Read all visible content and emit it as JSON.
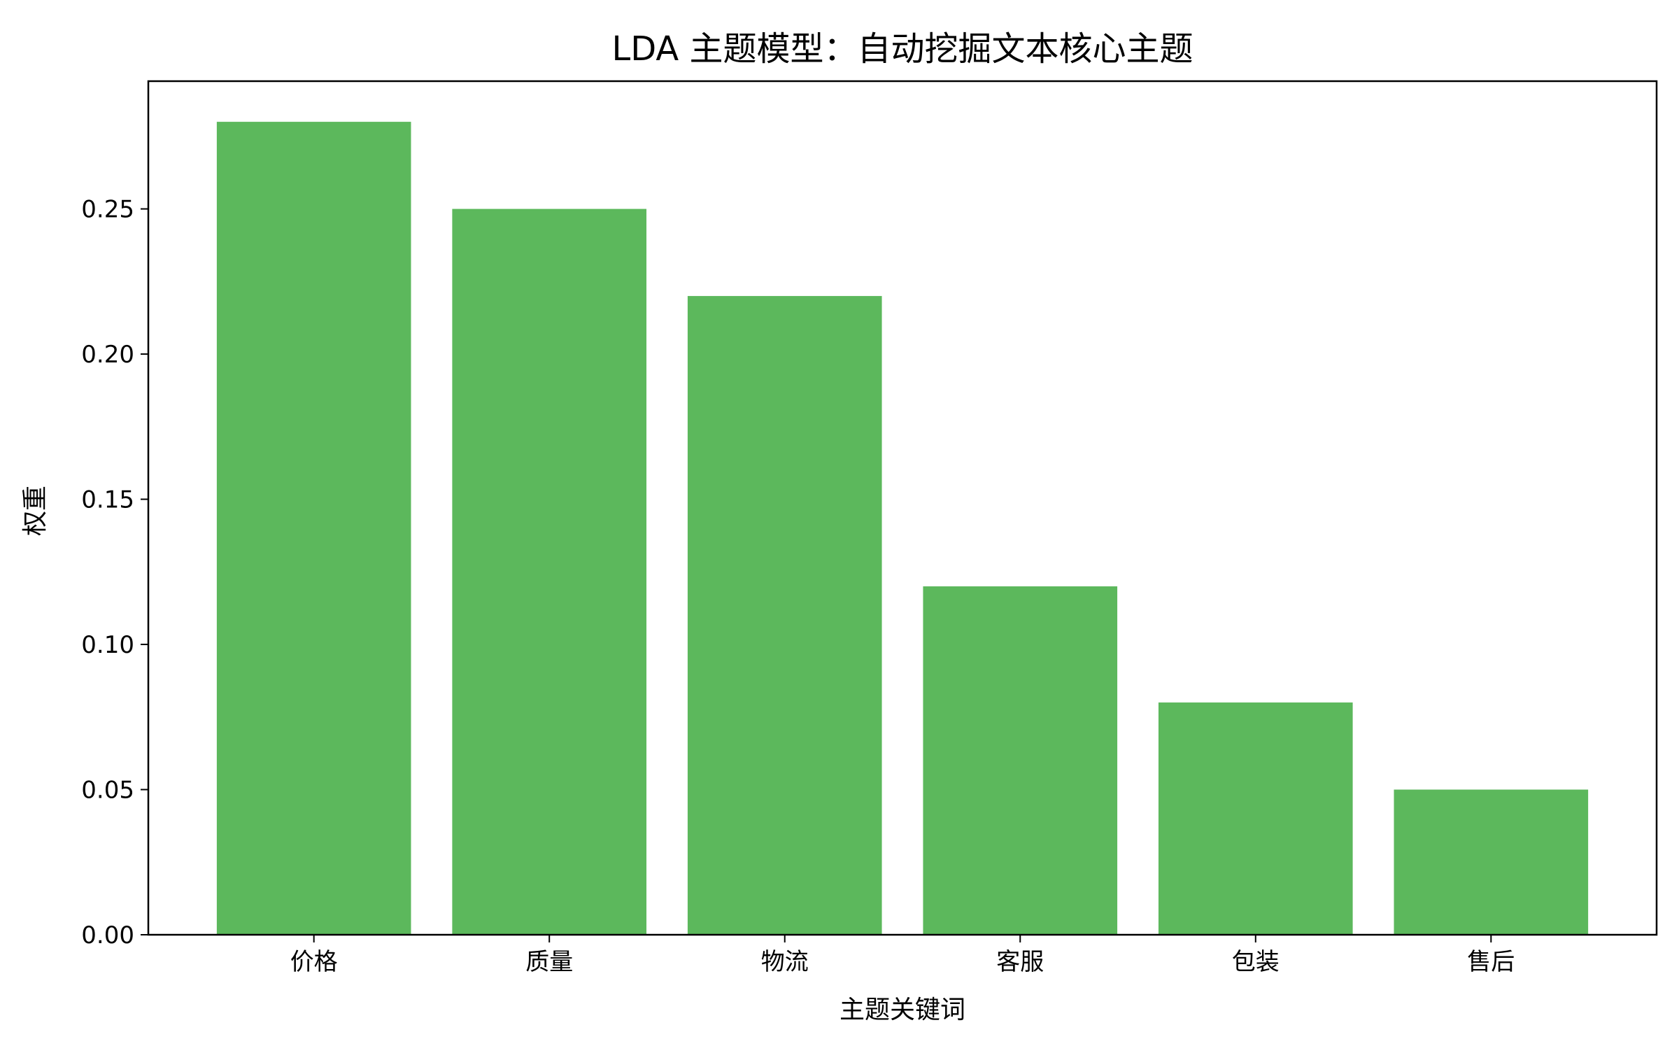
{
  "chart_data": {
    "type": "bar",
    "title": "LDA 主题模型：自动挖掘文本核心主题",
    "xlabel": "主题关键词",
    "ylabel": "权重",
    "categories": [
      "价格",
      "质量",
      "物流",
      "客服",
      "包装",
      "售后"
    ],
    "values": [
      0.28,
      0.25,
      0.22,
      0.12,
      0.08,
      0.05
    ],
    "ylim": [
      0,
      0.294
    ],
    "yticks": [
      "0.00",
      "0.05",
      "0.10",
      "0.15",
      "0.20",
      "0.25"
    ],
    "grid": false,
    "legend": "none",
    "bar_color": "#5cb85c"
  }
}
